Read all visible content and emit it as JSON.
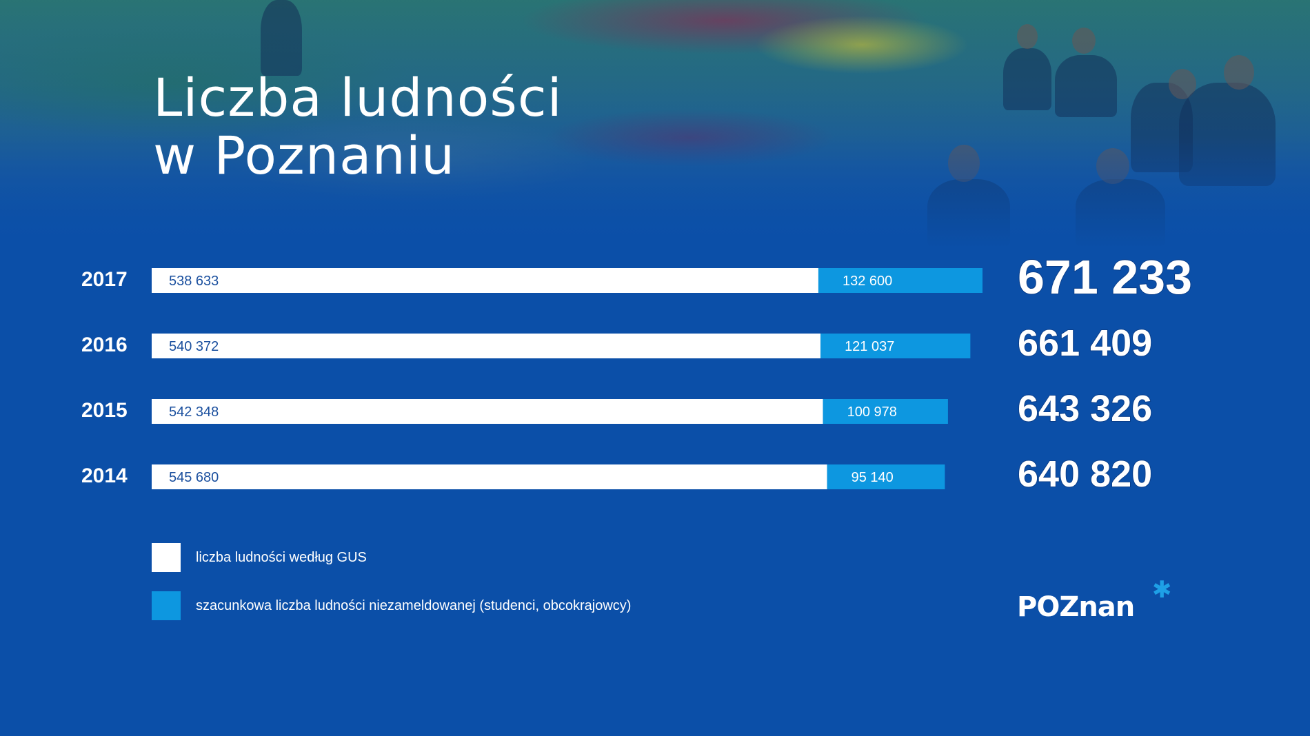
{
  "header": {
    "title_line1": "Liczba ludności",
    "title_line2": "w Poznaniu"
  },
  "colors": {
    "background": "#0b4fa8",
    "registered": "#ffffff",
    "unregistered": "#0d97e0",
    "registered_label": "#1a4f9e",
    "text": "#ffffff"
  },
  "chart_data": {
    "type": "bar",
    "orientation": "horizontal",
    "stacked": true,
    "categories": [
      "2017",
      "2016",
      "2015",
      "2014"
    ],
    "series": [
      {
        "name": "liczba ludności według GUS",
        "values": [
          538633,
          540372,
          542348,
          545680
        ],
        "labels": [
          "538 633",
          "540 372",
          "542 348",
          "545 680"
        ]
      },
      {
        "name": "szacunkowa liczba ludności niezameldowanej (studenci, obcokrajowcy)",
        "values": [
          132600,
          121037,
          100978,
          95140
        ],
        "labels": [
          "132 600",
          "121 037",
          "100 978",
          "95 140"
        ]
      }
    ],
    "totals": [
      671233,
      661409,
      643326,
      640820
    ],
    "total_labels": [
      "671 233",
      "661 409",
      "643 326",
      "640 820"
    ],
    "xlim": [
      0,
      671233
    ],
    "legend_position": "bottom-left"
  },
  "logo": {
    "text": "POZnan"
  }
}
